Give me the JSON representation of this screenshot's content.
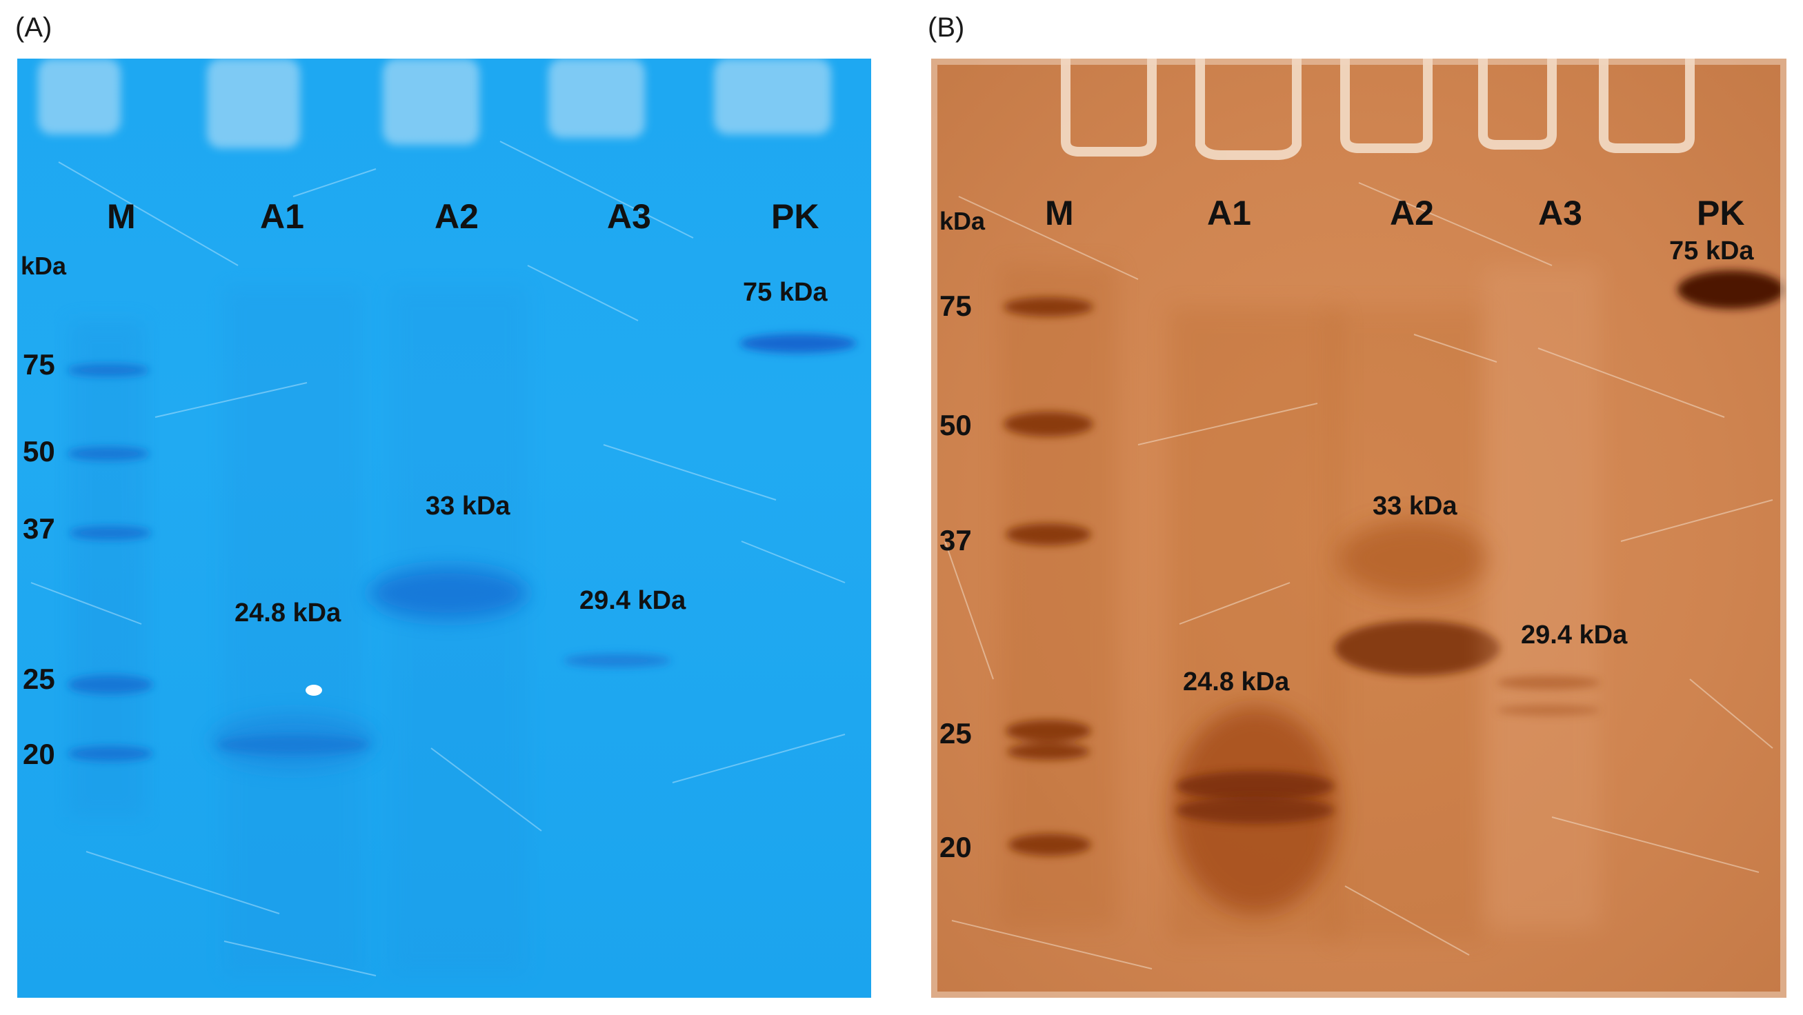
{
  "panels": [
    {
      "letter": "(A)",
      "kda_unit": "kDa",
      "lanes": [
        "M",
        "A1",
        "A2",
        "A3",
        "PK"
      ],
      "marker_values": [
        "75",
        "50",
        "37",
        "25",
        "20"
      ],
      "band_labels": [
        "75 kDa",
        "33 kDa",
        "24.8 kDa",
        "29.4 kDa"
      ],
      "stain_color": "#1ea8f2"
    },
    {
      "letter": "(B)",
      "kda_unit": "kDa",
      "lanes": [
        "M",
        "A1",
        "A2",
        "A3",
        "PK"
      ],
      "marker_values": [
        "75",
        "50",
        "37",
        "25",
        "20"
      ],
      "band_labels": [
        "75 kDa",
        "33 kDa",
        "29.4 kDa",
        "24.8 kDa"
      ],
      "stain_color": "#cf8450"
    }
  ]
}
